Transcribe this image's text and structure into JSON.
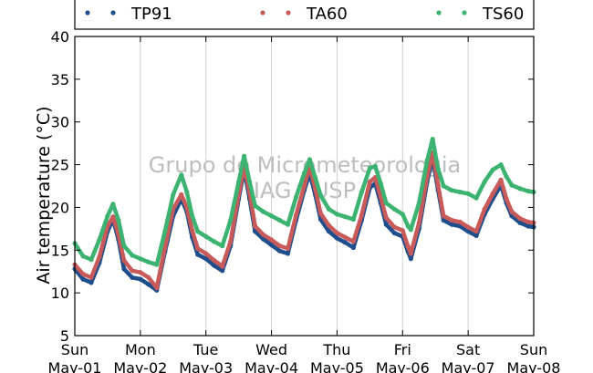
{
  "chart_data": {
    "type": "line",
    "ylabel": "Air temperature (°C)",
    "ylim": [
      5,
      40
    ],
    "yticks": [
      5,
      10,
      15,
      20,
      25,
      30,
      35,
      40
    ],
    "xlim": [
      0,
      168
    ],
    "x_unit": "hours since Sun May-01 00:00",
    "xticks": [
      {
        "x": 0,
        "day": "Sun",
        "date": "May-01"
      },
      {
        "x": 24,
        "day": "Mon",
        "date": "May-02"
      },
      {
        "x": 48,
        "day": "Tue",
        "date": "May-03"
      },
      {
        "x": 72,
        "day": "Wed",
        "date": "May-04"
      },
      {
        "x": 96,
        "day": "Thu",
        "date": "May-05"
      },
      {
        "x": 120,
        "day": "Fri",
        "date": "May-06"
      },
      {
        "x": 144,
        "day": "Sat",
        "date": "May-07"
      },
      {
        "x": 168,
        "day": "Sun",
        "date": "May-08"
      }
    ],
    "grid": "vertical",
    "legend_position": "top",
    "watermark": [
      "Grupo de Micrometeorologia",
      "IAG / USP"
    ],
    "series": [
      {
        "name": "TP91",
        "color": "#1f4e8c",
        "points": [
          [
            0,
            12.8
          ],
          [
            3,
            11.6
          ],
          [
            6,
            11.2
          ],
          [
            9,
            13.5
          ],
          [
            12,
            17.2
          ],
          [
            14,
            18.6
          ],
          [
            16,
            16.2
          ],
          [
            18,
            12.8
          ],
          [
            21,
            11.8
          ],
          [
            24,
            11.6
          ],
          [
            27,
            11.0
          ],
          [
            30,
            10.3
          ],
          [
            33,
            14.8
          ],
          [
            36,
            19.0
          ],
          [
            39,
            21.0
          ],
          [
            41,
            19.5
          ],
          [
            43,
            16.5
          ],
          [
            45,
            14.5
          ],
          [
            48,
            14.0
          ],
          [
            51,
            13.2
          ],
          [
            54,
            12.6
          ],
          [
            57,
            15.5
          ],
          [
            60,
            21.0
          ],
          [
            62,
            24.4
          ],
          [
            64,
            21.0
          ],
          [
            66,
            17.2
          ],
          [
            69,
            16.3
          ],
          [
            72,
            15.6
          ],
          [
            75,
            14.9
          ],
          [
            78,
            14.6
          ],
          [
            81,
            18.5
          ],
          [
            84,
            22.0
          ],
          [
            86,
            24.0
          ],
          [
            88,
            21.5
          ],
          [
            90,
            18.6
          ],
          [
            93,
            17.2
          ],
          [
            96,
            16.4
          ],
          [
            99,
            15.9
          ],
          [
            102,
            15.3
          ],
          [
            105,
            18.5
          ],
          [
            108,
            22.3
          ],
          [
            110,
            22.8
          ],
          [
            112,
            20.5
          ],
          [
            114,
            18.0
          ],
          [
            117,
            17.0
          ],
          [
            120,
            16.6
          ],
          [
            122,
            14.8
          ],
          [
            123,
            14.0
          ],
          [
            126,
            17.5
          ],
          [
            129,
            23.0
          ],
          [
            131,
            25.8
          ],
          [
            133,
            22.0
          ],
          [
            135,
            18.5
          ],
          [
            138,
            18.0
          ],
          [
            141,
            17.8
          ],
          [
            144,
            17.2
          ],
          [
            147,
            16.7
          ],
          [
            150,
            19.2
          ],
          [
            153,
            21.0
          ],
          [
            156,
            22.6
          ],
          [
            158,
            20.5
          ],
          [
            160,
            19.0
          ],
          [
            163,
            18.2
          ],
          [
            166,
            17.8
          ],
          [
            168,
            17.7
          ]
        ]
      },
      {
        "name": "TA60",
        "color": "#c85a5a",
        "points": [
          [
            0,
            13.3
          ],
          [
            3,
            12.2
          ],
          [
            6,
            11.8
          ],
          [
            9,
            14.2
          ],
          [
            12,
            17.8
          ],
          [
            14,
            18.9
          ],
          [
            16,
            16.8
          ],
          [
            18,
            13.8
          ],
          [
            21,
            12.6
          ],
          [
            24,
            12.4
          ],
          [
            27,
            11.8
          ],
          [
            30,
            10.6
          ],
          [
            33,
            15.3
          ],
          [
            36,
            19.8
          ],
          [
            39,
            21.5
          ],
          [
            41,
            20.0
          ],
          [
            43,
            17.3
          ],
          [
            45,
            15.2
          ],
          [
            48,
            14.6
          ],
          [
            51,
            13.8
          ],
          [
            54,
            13.1
          ],
          [
            57,
            16.0
          ],
          [
            60,
            21.5
          ],
          [
            62,
            24.8
          ],
          [
            64,
            21.7
          ],
          [
            66,
            17.8
          ],
          [
            69,
            16.8
          ],
          [
            72,
            16.2
          ],
          [
            75,
            15.5
          ],
          [
            78,
            15.2
          ],
          [
            81,
            19.1
          ],
          [
            84,
            22.5
          ],
          [
            86,
            24.8
          ],
          [
            88,
            22.2
          ],
          [
            90,
            19.3
          ],
          [
            93,
            17.9
          ],
          [
            96,
            17.0
          ],
          [
            99,
            16.5
          ],
          [
            102,
            16.0
          ],
          [
            105,
            19.1
          ],
          [
            108,
            23.0
          ],
          [
            110,
            23.5
          ],
          [
            112,
            21.2
          ],
          [
            114,
            18.8
          ],
          [
            117,
            17.7
          ],
          [
            120,
            17.3
          ],
          [
            122,
            15.4
          ],
          [
            123,
            14.6
          ],
          [
            126,
            18.2
          ],
          [
            129,
            23.6
          ],
          [
            131,
            26.4
          ],
          [
            133,
            22.6
          ],
          [
            135,
            19.0
          ],
          [
            138,
            18.5
          ],
          [
            141,
            18.3
          ],
          [
            144,
            17.7
          ],
          [
            147,
            17.2
          ],
          [
            150,
            19.8
          ],
          [
            153,
            21.6
          ],
          [
            156,
            23.2
          ],
          [
            158,
            21.0
          ],
          [
            160,
            19.5
          ],
          [
            163,
            18.7
          ],
          [
            166,
            18.3
          ],
          [
            168,
            18.2
          ]
        ]
      },
      {
        "name": "TS60",
        "color": "#3cb371",
        "points": [
          [
            0,
            15.8
          ],
          [
            3,
            14.3
          ],
          [
            6,
            13.9
          ],
          [
            9,
            16.2
          ],
          [
            12,
            19.0
          ],
          [
            14,
            20.4
          ],
          [
            16,
            18.5
          ],
          [
            18,
            15.5
          ],
          [
            21,
            14.4
          ],
          [
            24,
            14.0
          ],
          [
            27,
            13.6
          ],
          [
            30,
            13.3
          ],
          [
            33,
            17.2
          ],
          [
            36,
            21.5
          ],
          [
            39,
            23.8
          ],
          [
            41,
            21.8
          ],
          [
            43,
            19.0
          ],
          [
            45,
            17.2
          ],
          [
            48,
            16.6
          ],
          [
            51,
            16.0
          ],
          [
            54,
            15.5
          ],
          [
            57,
            18.5
          ],
          [
            60,
            23.0
          ],
          [
            62,
            26.0
          ],
          [
            64,
            23.0
          ],
          [
            66,
            20.2
          ],
          [
            69,
            19.5
          ],
          [
            72,
            19.0
          ],
          [
            75,
            18.5
          ],
          [
            78,
            18.0
          ],
          [
            81,
            21.2
          ],
          [
            84,
            24.0
          ],
          [
            86,
            25.6
          ],
          [
            88,
            23.5
          ],
          [
            90,
            21.4
          ],
          [
            93,
            19.8
          ],
          [
            96,
            19.2
          ],
          [
            99,
            18.9
          ],
          [
            102,
            18.6
          ],
          [
            105,
            21.8
          ],
          [
            108,
            24.6
          ],
          [
            110,
            24.8
          ],
          [
            112,
            22.8
          ],
          [
            114,
            20.5
          ],
          [
            117,
            19.8
          ],
          [
            120,
            19.2
          ],
          [
            122,
            17.8
          ],
          [
            123,
            17.4
          ],
          [
            126,
            20.5
          ],
          [
            129,
            25.5
          ],
          [
            131,
            28.0
          ],
          [
            133,
            24.5
          ],
          [
            135,
            22.5
          ],
          [
            138,
            22.0
          ],
          [
            141,
            21.8
          ],
          [
            144,
            21.6
          ],
          [
            147,
            21.1
          ],
          [
            150,
            23.0
          ],
          [
            153,
            24.4
          ],
          [
            156,
            25.0
          ],
          [
            158,
            23.6
          ],
          [
            160,
            22.6
          ],
          [
            163,
            22.2
          ],
          [
            166,
            21.9
          ],
          [
            168,
            21.8
          ]
        ]
      }
    ]
  }
}
